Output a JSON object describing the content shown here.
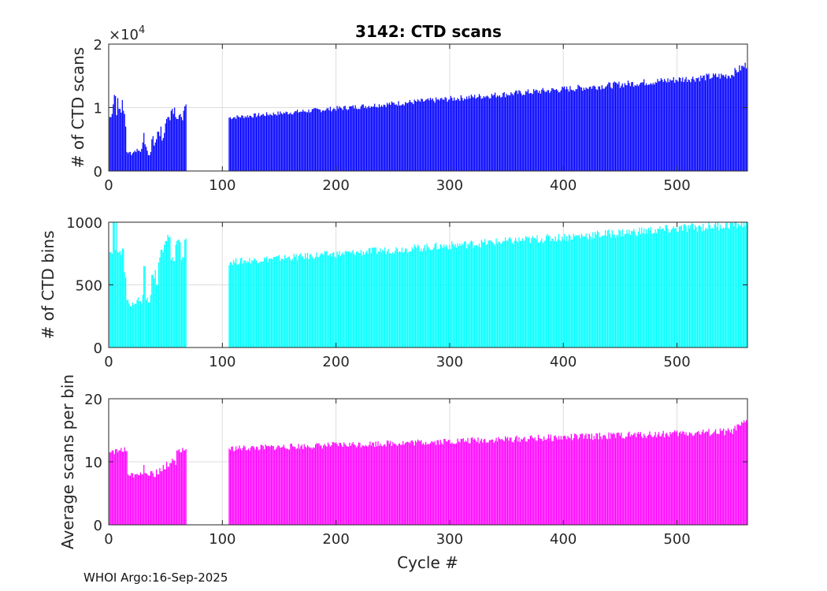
{
  "figure": {
    "title": "3142: CTD scans",
    "footer": "WHOI Argo:16-Sep-2025",
    "xlabel": "Cycle #"
  },
  "chart_data": [
    {
      "type": "bar",
      "name": "ctd-scans",
      "ylabel": "# of CTD scans",
      "exponent_label": "×10",
      "exponent_power": "4",
      "color": "#0000ff",
      "xlim": [
        0,
        562
      ],
      "ylim": [
        0,
        2
      ],
      "xticks": [
        0,
        100,
        200,
        300,
        400,
        500
      ],
      "yticks": [
        0,
        1,
        2
      ],
      "grid": true,
      "segments": [
        {
          "from": 1,
          "to": 68,
          "values": [
            0.85,
            0.9,
            1.05,
            1.2,
            1.18,
            0.88,
            1.15,
            0.98,
            0.92,
            1.12,
            0.95,
            0.9,
            0.7,
            0.3,
            0.28,
            0.3,
            0.25,
            0.28,
            0.3,
            0.32,
            0.3,
            0.35,
            0.32,
            0.3,
            0.35,
            0.45,
            0.6,
            0.42,
            0.38,
            0.32,
            0.25,
            0.3,
            0.5,
            0.55,
            0.4,
            0.45,
            0.5,
            0.62,
            0.55,
            0.7,
            0.48,
            0.52,
            0.6,
            0.75,
            0.82,
            0.85,
            0.8,
            0.95,
            0.98,
            0.9,
            1.0,
            0.85,
            0.82,
            0.88,
            0.9,
            0.85,
            0.8,
            0.95,
            1.02,
            1.05
          ]
        },
        {
          "from": 106,
          "to": 562,
          "start": 0.85,
          "end": 1.55,
          "tail_end": 1.7
        }
      ]
    },
    {
      "type": "bar",
      "name": "ctd-bins",
      "ylabel": "# of CTD bins",
      "color": "#00ffff",
      "xlim": [
        0,
        562
      ],
      "ylim": [
        0,
        1000
      ],
      "xticks": [
        0,
        100,
        200,
        300,
        400,
        500
      ],
      "yticks": [
        0,
        500,
        1000
      ],
      "grid": true,
      "segments": [
        {
          "from": 1,
          "to": 68,
          "values": [
            760,
            750,
            1000,
            780,
            1000,
            760,
            770,
            740,
            790,
            600,
            560,
            380,
            350,
            330,
            360,
            340,
            350,
            380,
            400,
            370,
            350,
            420,
            650,
            380,
            400,
            360,
            420,
            580,
            550,
            620,
            500,
            680,
            720,
            780,
            760,
            820,
            850,
            900,
            880,
            700,
            720,
            690,
            820,
            850,
            860,
            840,
            700,
            720,
            860,
            870
          ]
        },
        {
          "from": 106,
          "to": 562,
          "start": 690,
          "end": 1000
        }
      ]
    },
    {
      "type": "bar",
      "name": "avg-scans-per-bin",
      "ylabel": "Average scans per bin",
      "color": "#ff00ff",
      "xlim": [
        0,
        562
      ],
      "ylim": [
        0,
        20
      ],
      "xticks": [
        0,
        100,
        200,
        300,
        400,
        500
      ],
      "yticks": [
        0,
        10,
        20
      ],
      "grid": true,
      "segments": [
        {
          "from": 1,
          "to": 68,
          "values": [
            11.5,
            11.8,
            11.2,
            12.0,
            11.5,
            11.8,
            12.2,
            11.6,
            12.3,
            11.7,
            8.0,
            7.8,
            8.2,
            7.5,
            8.0,
            8.1,
            7.9,
            8.3,
            8.0,
            9.5,
            8.2,
            8.0,
            7.8,
            8.5,
            8.2,
            7.6,
            8.8,
            8.0,
            9.0,
            8.5,
            9.5,
            8.8,
            10.0,
            9.2,
            9.8,
            10.5,
            10.2,
            9.5,
            11.8,
            12.0,
            11.5,
            12.2,
            11.8,
            12.0
          ]
        },
        {
          "from": 106,
          "to": 562,
          "start": 12.2,
          "end": 15.0,
          "tail_end": 16.5
        }
      ]
    }
  ]
}
